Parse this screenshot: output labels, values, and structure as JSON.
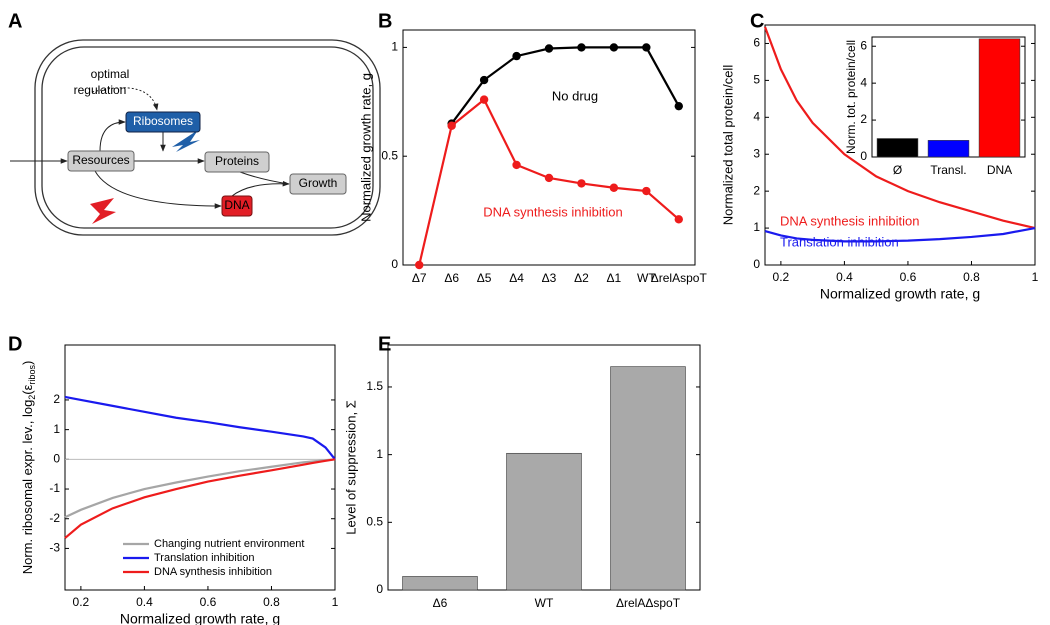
{
  "diagram": {
    "panel": "A",
    "nodes": [
      "Resources",
      "Ribosomes",
      "Proteins",
      "Growth",
      "DNA"
    ],
    "annotation": [
      "optimal",
      "regulation"
    ]
  },
  "chart_data": [
    {
      "type": "line",
      "panel": "B",
      "markers": true,
      "ylabel": "Normalized growth rate, g",
      "categories": [
        "Δ7",
        "Δ6",
        "Δ5",
        "Δ4",
        "Δ3",
        "Δ2",
        "Δ1",
        "WT",
        "ΔrelAspoT"
      ],
      "series": [
        {
          "name": "No drug",
          "color": "#000000",
          "values": [
            null,
            0.65,
            0.85,
            0.96,
            0.995,
            1.0,
            1.0,
            1.0,
            0.73
          ]
        },
        {
          "name": "DNA synthesis inhibition",
          "color": "#ee1c1c",
          "values": [
            0,
            0.64,
            0.76,
            0.46,
            0.4,
            0.375,
            0.355,
            0.34,
            0.21
          ]
        }
      ],
      "ylim": [
        0,
        1.08
      ],
      "yticks": [
        0,
        0.5,
        1
      ]
    },
    {
      "type": "line",
      "panel": "C",
      "xlabel": "Normalized growth rate, g",
      "ylabel": "Normalized total protein/cell",
      "x": [
        0.15,
        0.2,
        0.25,
        0.3,
        0.4,
        0.5,
        0.6,
        0.7,
        0.8,
        0.9,
        1
      ],
      "series": [
        {
          "name": "DNA synthesis inhibition",
          "color": "#ee1c1c",
          "values": [
            6.45,
            5.3,
            4.45,
            3.85,
            3.0,
            2.4,
            2.0,
            1.7,
            1.45,
            1.2,
            1.0
          ]
        },
        {
          "name": "Translation inhibition",
          "color": "#1a1aee",
          "values": [
            0.92,
            0.8,
            0.72,
            0.68,
            0.64,
            0.64,
            0.66,
            0.7,
            0.76,
            0.84,
            1.0
          ]
        }
      ],
      "xlim": [
        0.15,
        1
      ],
      "xticks": [
        0.2,
        0.4,
        0.6,
        0.8,
        1
      ],
      "ylim": [
        0,
        6.5
      ],
      "yticks": [
        0,
        1,
        2,
        3,
        4,
        5,
        6
      ]
    },
    {
      "type": "bar",
      "ylabel": "Norm. tot. protein/cell",
      "categories": [
        "Ø",
        "Transl.",
        "DNA"
      ],
      "values": [
        1.0,
        0.9,
        6.4
      ],
      "colors": [
        "#000000",
        "#0000ff",
        "#ff0000"
      ],
      "ylim": [
        0,
        6.5
      ],
      "yticks": [
        0,
        2,
        4,
        6
      ]
    },
    {
      "type": "line",
      "panel": "D",
      "xlabel": "Normalized growth rate, g",
      "ylabel": [
        "Norm. ribosomal expr. lev., log",
        "2",
        "(ε",
        "ribos",
        ")"
      ],
      "x": [
        0.15,
        0.2,
        0.3,
        0.4,
        0.5,
        0.6,
        0.7,
        0.8,
        0.9,
        0.93,
        0.97,
        1
      ],
      "series": [
        {
          "name": "Changing nutrient environment",
          "color": "#a6a6a6",
          "values": [
            -1.95,
            -1.7,
            -1.3,
            -1.0,
            -0.78,
            -0.58,
            -0.4,
            -0.25,
            -0.1,
            -0.07,
            -0.03,
            0
          ]
        },
        {
          "name": "Translation inhibition",
          "color": "#1a1aee",
          "values": [
            2.1,
            2.0,
            1.8,
            1.6,
            1.4,
            1.25,
            1.08,
            0.93,
            0.77,
            0.7,
            0.4,
            0
          ]
        },
        {
          "name": "DNA synthesis inhibition",
          "color": "#ee1c1c",
          "values": [
            -2.65,
            -2.2,
            -1.65,
            -1.28,
            -1.0,
            -0.75,
            -0.55,
            -0.37,
            -0.18,
            -0.12,
            -0.05,
            0
          ]
        }
      ],
      "xlim": [
        0.15,
        1
      ],
      "xticks": [
        0.2,
        0.4,
        0.6,
        0.8,
        1
      ],
      "ylim": [
        -4.4,
        3.85
      ],
      "yticks": [
        -3,
        -2,
        -1,
        0,
        1,
        2
      ],
      "zero_line": true,
      "legend": "lower left"
    },
    {
      "type": "bar",
      "panel": "E",
      "ylabel": "Level of suppression, Σ",
      "categories": [
        "Δ6",
        "WT",
        "ΔrelAΔspoT"
      ],
      "values": [
        0.1,
        1.01,
        1.65
      ],
      "color": "#a9a9a9",
      "ylim": [
        0,
        1.81
      ],
      "yticks": [
        0,
        0.5,
        1,
        1.5
      ]
    }
  ]
}
